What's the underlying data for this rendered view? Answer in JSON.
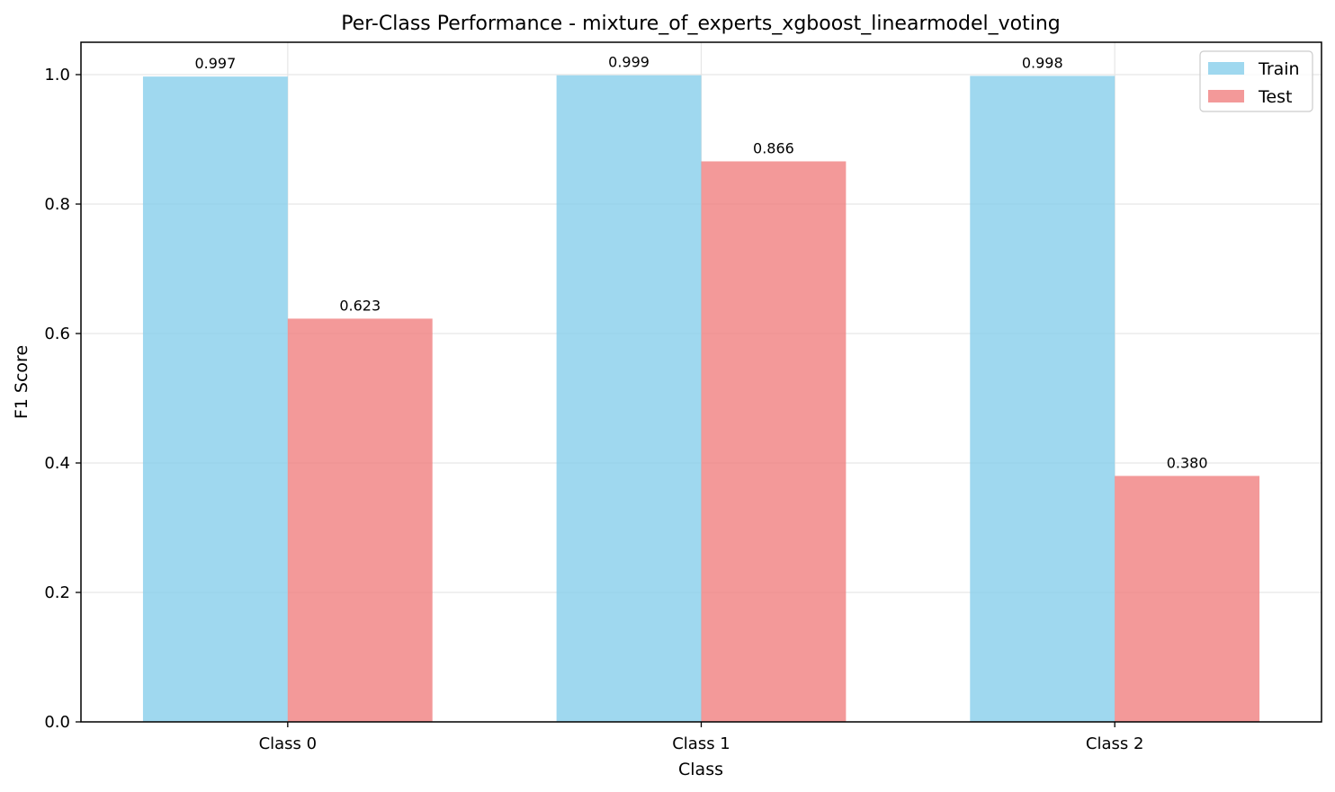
{
  "chart_data": {
    "type": "bar",
    "title": "Per-Class Performance - mixture_of_experts_xgboost_linearmodel_voting",
    "xlabel": "Class",
    "ylabel": "F1 Score",
    "categories": [
      "Class 0",
      "Class 1",
      "Class 2"
    ],
    "series": [
      {
        "name": "Train",
        "color": "#87CEEB",
        "values": [
          0.997,
          0.999,
          0.998
        ],
        "labels": [
          "0.997",
          "0.999",
          "0.998"
        ]
      },
      {
        "name": "Test",
        "color": "#F08080",
        "values": [
          0.623,
          0.866,
          0.38
        ],
        "labels": [
          "0.623",
          "0.866",
          "0.380"
        ]
      }
    ],
    "ylim": [
      0,
      1.05
    ],
    "yticks": [
      0.0,
      0.2,
      0.4,
      0.6,
      0.8,
      1.0
    ],
    "ytick_labels": [
      "0.0",
      "0.2",
      "0.4",
      "0.6",
      "0.8",
      "1.0"
    ],
    "grid": true,
    "legend_position": "top-right"
  }
}
